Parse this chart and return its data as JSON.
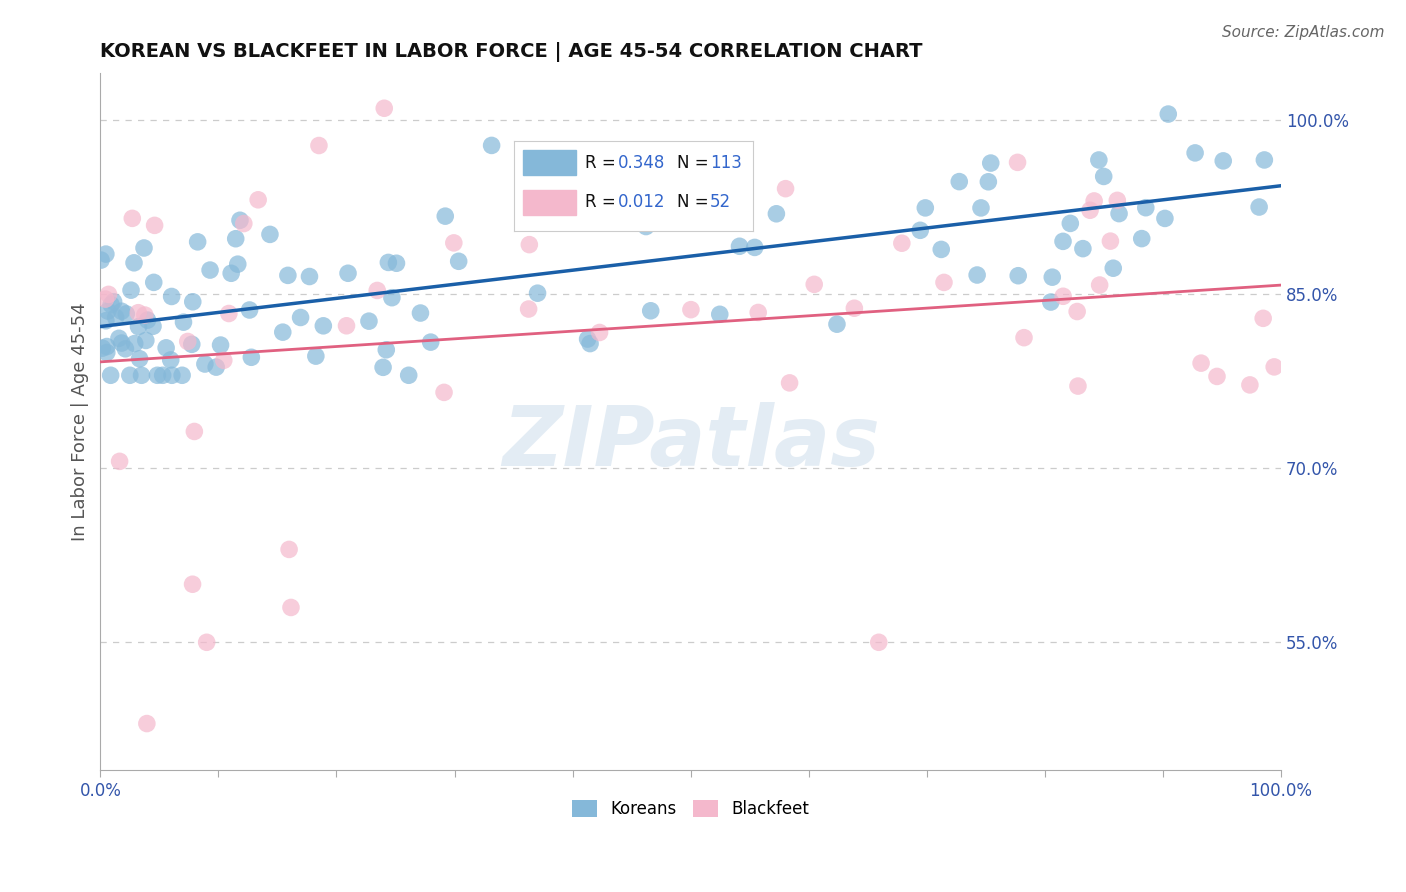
{
  "title": "KOREAN VS BLACKFEET IN LABOR FORCE | AGE 45-54 CORRELATION CHART",
  "source_text": "Source: ZipAtlas.com",
  "ylabel": "In Labor Force | Age 45-54",
  "xlim": [
    0.0,
    1.0
  ],
  "ylim": [
    0.44,
    1.04
  ],
  "ytick_positions": [
    0.55,
    0.7,
    0.85,
    1.0
  ],
  "ytick_labels": [
    "55.0%",
    "70.0%",
    "85.0%",
    "100.0%"
  ],
  "xtick_positions": [
    0.0,
    0.1,
    0.2,
    0.3,
    0.4,
    0.5,
    0.6,
    0.7,
    0.8,
    0.9,
    1.0
  ],
  "xtick_labels": [
    "0.0%",
    "",
    "",
    "",
    "",
    "",
    "",
    "",
    "",
    "",
    "100.0%"
  ],
  "korean_color": "#85b8d9",
  "blackfeet_color": "#f4b8cc",
  "korean_line_color": "#1a5fa8",
  "blackfeet_line_color": "#e06080",
  "korean_R": 0.348,
  "blackfeet_R": 0.012,
  "korean_N": 113,
  "blackfeet_N": 52,
  "watermark_color": "#c8daea",
  "watermark_alpha": 0.5,
  "background_color": "#ffffff",
  "grid_color": "#cccccc",
  "title_color": "#111111",
  "tick_label_color": "#3355aa",
  "legend_R_color": "#3366cc",
  "legend_N_color": "#3366cc",
  "legend_text_color": "#111111",
  "source_color": "#666666",
  "ylabel_color": "#555555"
}
